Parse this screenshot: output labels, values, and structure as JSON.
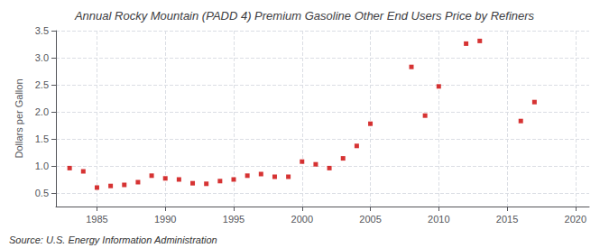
{
  "chart_data": {
    "type": "scatter",
    "title": "Annual Rocky Mountain (PADD 4) Premium Gasoline Other End Users Price by Refiners",
    "ylabel": "Dollars per Gallon",
    "annotations": [
      "Source: U.S. Energy Information Administration"
    ],
    "x": [
      1983,
      1984,
      1985,
      1986,
      1987,
      1988,
      1989,
      1990,
      1991,
      1992,
      1993,
      1994,
      1995,
      1996,
      1997,
      1998,
      1999,
      2000,
      2001,
      2002,
      2003,
      2004,
      2005,
      2008,
      2009,
      2010,
      2012,
      2013,
      2016,
      2017
    ],
    "values": [
      0.96,
      0.9,
      0.6,
      0.63,
      0.65,
      0.7,
      0.82,
      0.77,
      0.75,
      0.68,
      0.67,
      0.72,
      0.75,
      0.82,
      0.85,
      0.8,
      0.8,
      1.08,
      1.03,
      0.96,
      1.14,
      1.37,
      1.78,
      2.83,
      1.93,
      2.47,
      3.26,
      3.31,
      1.83,
      2.18
    ],
    "color": "#cc0000",
    "marker": "square",
    "xlim": [
      1982,
      2021
    ],
    "ylim": [
      0.25,
      3.5
    ],
    "xticks": [
      1985,
      1990,
      1995,
      2000,
      2005,
      2010,
      2015,
      2020
    ],
    "yticks": [
      0.5,
      {
        "value": 1.0,
        "label": "1.0"
      },
      1.5,
      {
        "value": 2.0,
        "label": "2.0"
      },
      2.5,
      {
        "value": 3.0,
        "label": "3.0"
      },
      3.5
    ],
    "grid": true
  }
}
